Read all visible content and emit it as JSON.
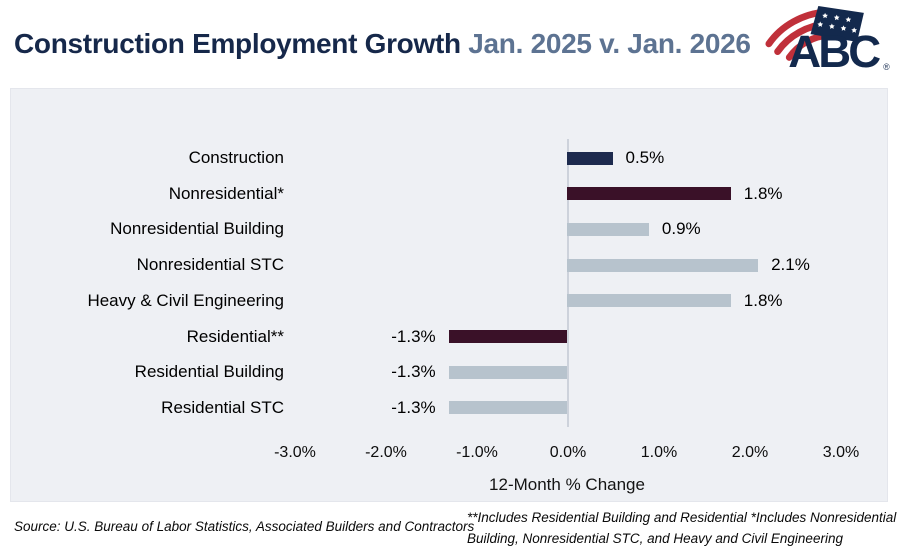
{
  "header": {
    "title_main": "Construction Employment Growth ",
    "title_period": "Jan. 2025 v. Jan. 2026",
    "logo": {
      "text": "ABC",
      "registered_mark": "®"
    }
  },
  "chart_data": {
    "type": "bar",
    "orientation": "horizontal",
    "title": "Construction Employment Growth Jan. 2025 v. Jan. 2026",
    "categories": [
      "Construction",
      "Nonresidential*",
      "Nonresidential Building",
      "Nonresidential STC",
      "Heavy & Civil Engineering",
      "Residential**",
      "Residential Building",
      "Residential STC"
    ],
    "values": [
      0.5,
      1.8,
      0.9,
      2.1,
      1.8,
      -1.3,
      -1.3,
      -1.3
    ],
    "value_labels": [
      "0.5%",
      "1.8%",
      "0.9%",
      "2.1%",
      "1.8%",
      "-1.3%",
      "-1.3%",
      "-1.3%"
    ],
    "bar_color_keys": [
      "navy",
      "maroon",
      "gray",
      "gray",
      "gray",
      "maroon",
      "gray",
      "gray"
    ],
    "colors": {
      "navy": "#1d2a4e",
      "maroon": "#3a1128",
      "gray": "#b7c3cd"
    },
    "xlabel": "12-Month % Change",
    "x_ticks": [
      "-3.0%",
      "-2.0%",
      "-1.0%",
      "0.0%",
      "1.0%",
      "2.0%",
      "3.0%"
    ],
    "x_tick_values": [
      -3,
      -2,
      -1,
      0,
      1,
      2,
      3
    ],
    "xlim": [
      -3.5,
      3.5
    ],
    "grid": false,
    "legend": "none",
    "background": "#eef0f4"
  },
  "footer": {
    "source": "Source: U.S. Bureau of Labor Statistics, Associated Builders and Contractors",
    "footnote": "**Includes Residential Building and Residential *Includes Nonresidential Building, Nonresidential STC, and Heavy and Civil Engineering"
  }
}
